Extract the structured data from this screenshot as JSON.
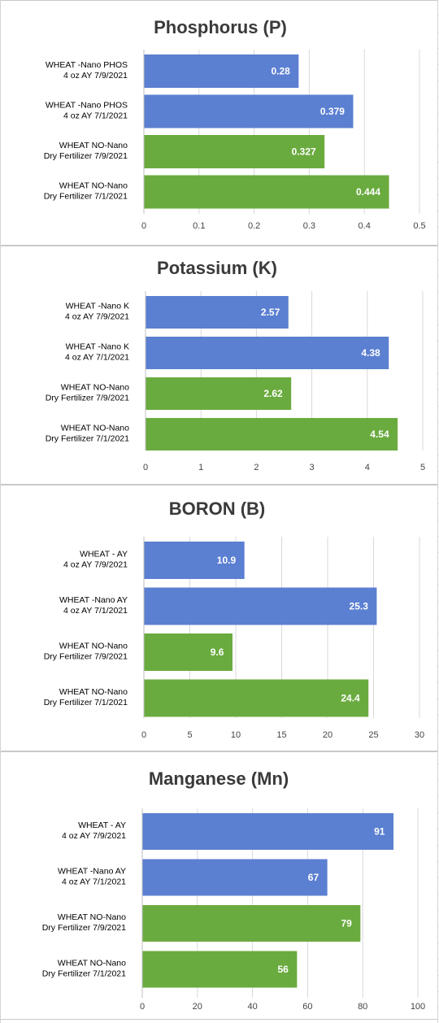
{
  "chart_data": [
    {
      "type": "bar",
      "orientation": "horizontal",
      "title": "Phosphorus  (P)",
      "categories": [
        [
          "WHEAT -Nano PHOS",
          "4 oz AY  7/9/2021"
        ],
        [
          "WHEAT -Nano PHOS",
          "4 oz AY  7/1/2021"
        ],
        [
          "WHEAT NO-Nano",
          "Dry Fertilizer 7/9/2021"
        ],
        [
          "WHEAT NO-Nano",
          "Dry Fertilizer 7/1/2021"
        ]
      ],
      "values": [
        0.28,
        0.379,
        0.327,
        0.444
      ],
      "value_labels": [
        "0.28",
        "0.379",
        "0.327",
        "0.444"
      ],
      "colors": [
        "#5b7fd1",
        "#5b7fd1",
        "#6aab3f",
        "#6aab3f"
      ],
      "xlim": [
        0,
        0.5
      ],
      "ticks": [
        "0",
        "0.1",
        "0.2",
        "0.3",
        "0.4",
        "0.5"
      ]
    },
    {
      "type": "bar",
      "orientation": "horizontal",
      "title": "Potassium  (K)",
      "categories": [
        [
          "WHEAT -Nano K",
          "4 oz AY  7/9/2021"
        ],
        [
          "WHEAT -Nano K",
          "4 oz AY  7/1/2021"
        ],
        [
          "WHEAT NO-Nano",
          "Dry Fertilizer 7/9/2021"
        ],
        [
          "WHEAT NO-Nano",
          "Dry Fertilizer 7/1/2021"
        ]
      ],
      "values": [
        2.57,
        4.38,
        2.62,
        4.54
      ],
      "value_labels": [
        "2.57",
        "4.38",
        "2.62",
        "4.54"
      ],
      "colors": [
        "#5b7fd1",
        "#5b7fd1",
        "#6aab3f",
        "#6aab3f"
      ],
      "xlim": [
        0,
        5
      ],
      "ticks": [
        "0",
        "1",
        "2",
        "3",
        "4",
        "5"
      ]
    },
    {
      "type": "bar",
      "orientation": "horizontal",
      "title": "BORON   (B)",
      "categories": [
        [
          "WHEAT - AY",
          "4 oz AY  7/9/2021"
        ],
        [
          "WHEAT -Nano AY",
          "4 oz AY  7/1/2021"
        ],
        [
          "WHEAT NO-Nano",
          "Dry Fertilizer 7/9/2021"
        ],
        [
          "WHEAT NO-Nano",
          "Dry Fertilizer 7/1/2021"
        ]
      ],
      "values": [
        10.9,
        25.3,
        9.6,
        24.4
      ],
      "value_labels": [
        "10.9",
        "25.3",
        "9.6",
        "24.4"
      ],
      "colors": [
        "#5b7fd1",
        "#5b7fd1",
        "#6aab3f",
        "#6aab3f"
      ],
      "xlim": [
        0,
        30
      ],
      "ticks": [
        "0",
        "5",
        "10",
        "15",
        "20",
        "25",
        "30"
      ]
    },
    {
      "type": "bar",
      "orientation": "horizontal",
      "title": "Manganese  (Mn)",
      "categories": [
        [
          "WHEAT - AY",
          "4 oz AY  7/9/2021"
        ],
        [
          "WHEAT -Nano AY",
          "4 oz AY  7/1/2021"
        ],
        [
          "WHEAT NO-Nano",
          "Dry Fertilizer 7/9/2021"
        ],
        [
          "WHEAT NO-Nano",
          "Dry Fertilizer 7/1/2021"
        ]
      ],
      "values": [
        91,
        67,
        79,
        56
      ],
      "value_labels": [
        "91",
        "67",
        "79",
        "56"
      ],
      "colors": [
        "#5b7fd1",
        "#5b7fd1",
        "#6aab3f",
        "#6aab3f"
      ],
      "xlim": [
        0,
        100
      ],
      "ticks": [
        "0",
        "20",
        "40",
        "60",
        "80",
        "100"
      ]
    }
  ]
}
